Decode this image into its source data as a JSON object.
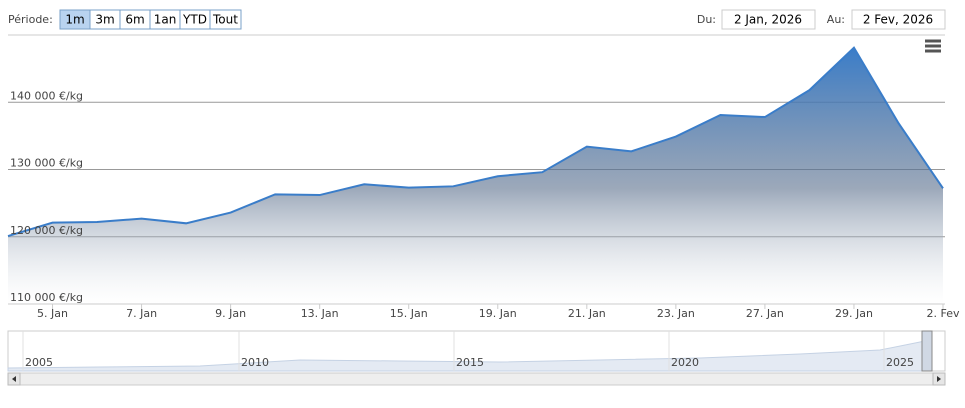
{
  "ui": {
    "period_label": "Période:",
    "buttons": [
      "1m",
      "3m",
      "6m",
      "1an",
      "YTD",
      "Tout"
    ],
    "from_label": "Du:",
    "from_value": "2 Jan, 2026",
    "to_label": "Au:",
    "to_value": "2 Fev, 2026"
  },
  "chart_data": {
    "type": "area",
    "categories": [
      null,
      "5. Jan",
      null,
      "7. Jan",
      null,
      "9. Jan",
      null,
      "13. Jan",
      null,
      "15. Jan",
      null,
      "19. Jan",
      null,
      "21. Jan",
      null,
      "23. Jan",
      null,
      "27. Jan",
      null,
      "29. Jan",
      null,
      "2. Fev"
    ],
    "values": [
      120100,
      122100,
      122200,
      122700,
      122000,
      123600,
      126300,
      126200,
      127800,
      127300,
      127500,
      129000,
      129600,
      133400,
      132700,
      134900,
      138100,
      137800,
      141800,
      148100,
      136900,
      127200
    ],
    "color": "#3a7dc9",
    "ylim": [
      110000,
      150000
    ],
    "yticks": [
      {
        "value": 110000,
        "label": "110 000 €/kg"
      },
      {
        "value": 120000,
        "label": "120 000 €/kg"
      },
      {
        "value": 130000,
        "label": "130 000 €/kg"
      },
      {
        "value": 140000,
        "label": "140 000 €/kg"
      }
    ],
    "grid": true
  },
  "navigator": {
    "labels": [
      "2005",
      "2010",
      "2015",
      "2020",
      "2025"
    ]
  }
}
